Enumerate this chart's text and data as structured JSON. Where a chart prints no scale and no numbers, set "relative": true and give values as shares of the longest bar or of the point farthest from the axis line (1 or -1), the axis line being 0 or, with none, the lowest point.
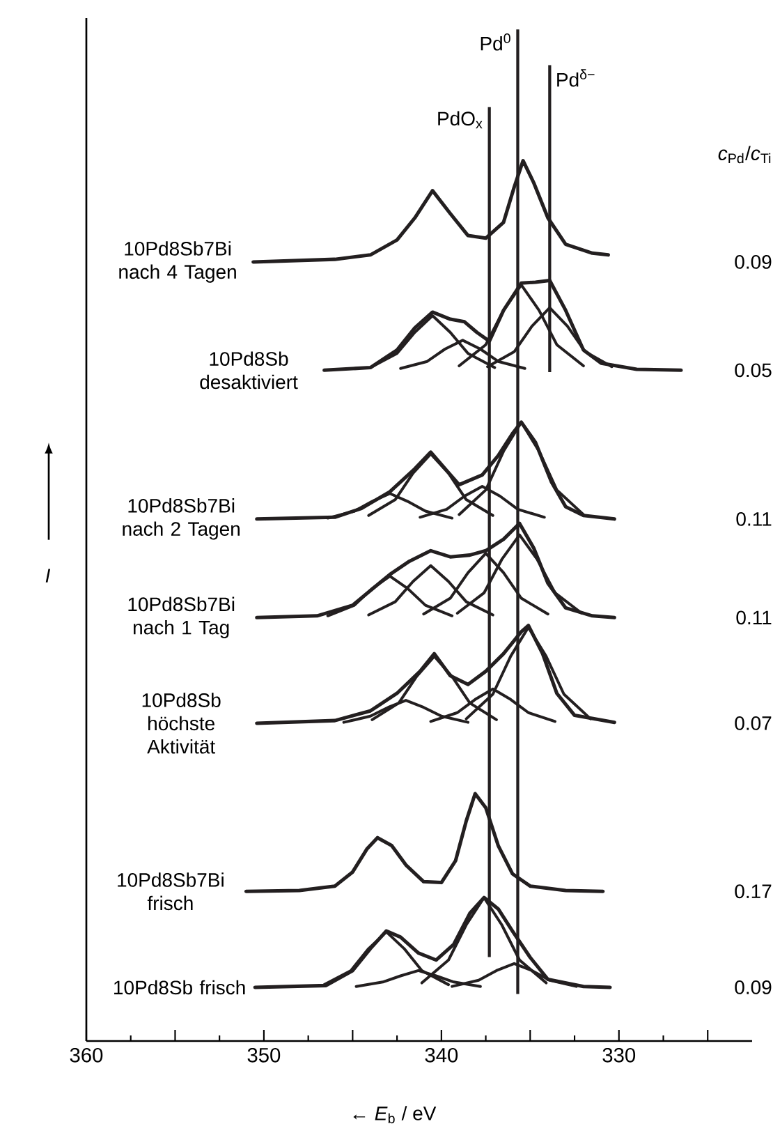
{
  "chart_data": {
    "type": "line",
    "relative": true,
    "xlabel": "← *E*$_{b}$ / eV",
    "ylabel": "*I*",
    "xlim": [
      360,
      322.5
    ],
    "xticks": [
      360,
      {
        "value": 355,
        "label": null
      },
      350,
      {
        "value": 345,
        "label": null
      },
      340,
      {
        "value": 335,
        "label": null
      },
      330,
      {
        "value": 325,
        "label": null
      }
    ],
    "series": [
      {
        "name": "10Pd8Sb7Bi nach 4 Tagen",
        "color": "#231f20",
        "x": [
          350.6,
          346,
          344,
          342.5,
          341.5,
          340.5,
          339.5,
          338.5,
          337.5,
          336.5,
          335.9,
          335.4,
          334.8,
          334,
          333,
          331.5,
          330.6
        ],
        "values": [
          0.885,
          0.888,
          0.893,
          0.91,
          0.935,
          0.966,
          0.94,
          0.915,
          0.912,
          0.93,
          0.97,
          1.0,
          0.975,
          0.935,
          0.905,
          0.895,
          0.893
        ]
      },
      {
        "name": "10Pd8Sb desaktiviert",
        "color": "#231f20",
        "x": [
          346.6,
          344,
          342.5,
          341.5,
          340.5,
          339.5,
          338.7,
          338,
          337.3,
          336.5,
          335.5,
          334.7,
          333.9,
          333,
          332,
          331,
          329,
          326.5
        ],
        "values": [
          0.762,
          0.765,
          0.785,
          0.81,
          0.828,
          0.82,
          0.817,
          0.805,
          0.795,
          0.83,
          0.861,
          0.862,
          0.864,
          0.83,
          0.785,
          0.77,
          0.763,
          0.762
        ]
      },
      {
        "color": "#231f20",
        "x": [
          344,
          342.5,
          341.5,
          340.5,
          339.5,
          338.5,
          337
        ],
        "values": [
          0.765,
          0.781,
          0.805,
          0.824,
          0.805,
          0.781,
          0.765
        ]
      },
      {
        "color": "#231f20",
        "x": [
          342.3,
          340.8,
          339.8,
          338.8,
          337.8,
          336.8,
          335.3
        ],
        "values": [
          0.764,
          0.772,
          0.786,
          0.796,
          0.786,
          0.772,
          0.764
        ]
      },
      {
        "color": "#231f20",
        "x": [
          339,
          337.5,
          336.5,
          335.5,
          334.5,
          333.5,
          332
        ],
        "values": [
          0.767,
          0.791,
          0.83,
          0.859,
          0.83,
          0.791,
          0.767
        ]
      },
      {
        "color": "#231f20",
        "x": [
          337.4,
          335.9,
          334.9,
          333.9,
          332.9,
          331.9,
          330.4
        ],
        "values": [
          0.766,
          0.783,
          0.812,
          0.833,
          0.812,
          0.783,
          0.766
        ]
      },
      {
        "name": "10Pd8Sb7Bi nach 2 Tagen",
        "color": "#231f20",
        "x": [
          350.4,
          346,
          344.5,
          342.9,
          341.5,
          340.6,
          339.7,
          339,
          337.7,
          336.8,
          336,
          335.5,
          334.7,
          333.8,
          333,
          332,
          330.25
        ],
        "values": [
          0.593,
          0.595,
          0.605,
          0.624,
          0.65,
          0.669,
          0.648,
          0.632,
          0.643,
          0.665,
          0.69,
          0.703,
          0.68,
          0.635,
          0.607,
          0.597,
          0.593
        ]
      },
      {
        "color": "#231f20",
        "x": [
          346.4,
          344.9,
          343.9,
          342.9,
          341.9,
          340.9,
          339.4
        ],
        "values": [
          0.594,
          0.602,
          0.613,
          0.622,
          0.613,
          0.602,
          0.594
        ]
      },
      {
        "color": "#231f20",
        "x": [
          344.1,
          342.6,
          341.6,
          340.6,
          339.6,
          338.6,
          337.1
        ],
        "values": [
          0.597,
          0.615,
          0.645,
          0.667,
          0.645,
          0.615,
          0.597
        ]
      },
      {
        "color": "#231f20",
        "x": [
          341.2,
          339.7,
          338.7,
          337.7,
          336.7,
          335.7,
          334.2
        ],
        "values": [
          0.595,
          0.604,
          0.619,
          0.63,
          0.619,
          0.604,
          0.595
        ]
      },
      {
        "color": "#231f20",
        "x": [
          339,
          337.5,
          336.5,
          335.5,
          334.5,
          333.5,
          332
        ],
        "values": [
          0.598,
          0.626,
          0.67,
          0.703,
          0.67,
          0.626,
          0.598
        ]
      },
      {
        "name": "10Pd8Sb7Bi nach 1 Tag",
        "color": "#231f20",
        "x": [
          350.4,
          347,
          345,
          343.5,
          342.9,
          341.8,
          340.6,
          339.5,
          338.4,
          337.5,
          336.5,
          335.6,
          334.8,
          334,
          333,
          331.5,
          330.25
        ],
        "values": [
          0.481,
          0.483,
          0.495,
          0.52,
          0.53,
          0.545,
          0.557,
          0.55,
          0.552,
          0.557,
          0.57,
          0.588,
          0.56,
          0.52,
          0.492,
          0.483,
          0.481
        ]
      },
      {
        "color": "#231f20",
        "x": [
          346.4,
          344.9,
          343.9,
          342.9,
          341.9,
          340.9,
          339.4
        ],
        "values": [
          0.483,
          0.495,
          0.514,
          0.528,
          0.514,
          0.495,
          0.483
        ]
      },
      {
        "color": "#231f20",
        "x": [
          344.1,
          342.6,
          341.6,
          340.6,
          339.6,
          338.6,
          337.1
        ],
        "values": [
          0.484,
          0.499,
          0.522,
          0.54,
          0.522,
          0.499,
          0.484
        ]
      },
      {
        "color": "#231f20",
        "x": [
          341,
          339.5,
          338.5,
          337.5,
          336.5,
          335.5,
          334
        ],
        "values": [
          0.485,
          0.503,
          0.532,
          0.554,
          0.532,
          0.503,
          0.485
        ]
      },
      {
        "color": "#231f20",
        "x": [
          339.1,
          337.6,
          336.6,
          335.6,
          334.6,
          333.6,
          332.1
        ],
        "values": [
          0.486,
          0.509,
          0.547,
          0.575,
          0.547,
          0.509,
          0.486
        ]
      },
      {
        "name": "10Pd8Sb höchste Aktivität",
        "color": "#231f20",
        "x": [
          350.4,
          346,
          344,
          342.5,
          341.2,
          340.4,
          339.5,
          338.5,
          337.5,
          336.5,
          335.5,
          335.1,
          334.3,
          333.5,
          332.5,
          330.25
        ],
        "values": [
          0.361,
          0.364,
          0.375,
          0.395,
          0.42,
          0.44,
          0.415,
          0.405,
          0.42,
          0.44,
          0.465,
          0.472,
          0.44,
          0.395,
          0.37,
          0.362
        ]
      },
      {
        "color": "#231f20",
        "x": [
          345.5,
          344,
          343,
          342,
          341,
          340,
          338.5
        ],
        "values": [
          0.362,
          0.369,
          0.379,
          0.387,
          0.379,
          0.369,
          0.362
        ]
      },
      {
        "color": "#231f20",
        "x": [
          343.9,
          342.4,
          341.4,
          340.4,
          339.4,
          338.4,
          336.9
        ],
        "values": [
          0.365,
          0.384,
          0.414,
          0.437,
          0.414,
          0.384,
          0.365
        ]
      },
      {
        "color": "#231f20",
        "x": [
          340.6,
          339.1,
          338.1,
          337.1,
          336.1,
          335.1,
          333.6
        ],
        "values": [
          0.363,
          0.373,
          0.388,
          0.4,
          0.388,
          0.373,
          0.363
        ]
      },
      {
        "color": "#231f20",
        "x": [
          338.6,
          337.1,
          336.1,
          335.1,
          334.1,
          333.1,
          331.6
        ],
        "values": [
          0.366,
          0.394,
          0.437,
          0.47,
          0.437,
          0.394,
          0.366
        ]
      },
      {
        "name": "10Pd8Sb7Bi frisch",
        "color": "#231f20",
        "x": [
          351,
          348,
          346,
          345,
          344.2,
          343.6,
          342.8,
          342,
          341,
          340,
          339.2,
          338.6,
          338.1,
          337.5,
          336.8,
          336,
          335,
          333,
          330.9
        ],
        "values": [
          0.17,
          0.171,
          0.176,
          0.192,
          0.218,
          0.231,
          0.222,
          0.2,
          0.181,
          0.18,
          0.205,
          0.25,
          0.281,
          0.265,
          0.222,
          0.19,
          0.176,
          0.171,
          0.17
        ]
      },
      {
        "name": "10Pd8Sb frisch",
        "color": "#231f20",
        "x": [
          350.5,
          346.5,
          345,
          344,
          343.1,
          342.3,
          341.3,
          340.3,
          339.3,
          338.4,
          337.6,
          336.8,
          336,
          335,
          334,
          332,
          330.5
        ],
        "values": [
          0.061,
          0.063,
          0.08,
          0.105,
          0.125,
          0.118,
          0.1,
          0.092,
          0.11,
          0.145,
          0.163,
          0.15,
          0.125,
          0.095,
          0.07,
          0.062,
          0.061
        ]
      },
      {
        "color": "#231f20",
        "x": [
          346.6,
          345.1,
          344.1,
          343.1,
          342.1,
          341.1,
          339.6
        ],
        "values": [
          0.064,
          0.08,
          0.105,
          0.124,
          0.105,
          0.08,
          0.064
        ]
      },
      {
        "color": "#231f20",
        "x": [
          344.8,
          343.3,
          342.3,
          341.3,
          340.3,
          339.3,
          337.8
        ],
        "values": [
          0.062,
          0.067,
          0.074,
          0.08,
          0.074,
          0.067,
          0.062
        ]
      },
      {
        "color": "#231f20",
        "x": [
          341.1,
          339.6,
          338.6,
          337.6,
          336.6,
          335.6,
          334.1
        ],
        "values": [
          0.066,
          0.092,
          0.132,
          0.163,
          0.132,
          0.092,
          0.066
        ]
      },
      {
        "color": "#231f20",
        "x": [
          339.4,
          337.9,
          336.9,
          335.9,
          334.9,
          333.9,
          332.4
        ],
        "values": [
          0.062,
          0.069,
          0.08,
          0.088,
          0.08,
          0.069,
          0.062
        ]
      }
    ],
    "ref_lines": [
      {
        "axis": "x",
        "value": 337.3,
        "label": "PdO$_{x}$",
        "color": "#231f20"
      },
      {
        "axis": "x",
        "value": 335.7,
        "label": "Pd$^{0}$",
        "color": "#231f20"
      },
      {
        "axis": "x",
        "value": 333.9,
        "label": "Pd$^{δ−}$",
        "color": "#231f20"
      }
    ],
    "annotations": [
      "*c*$_{Pd}$/*c*$_{Ti}$",
      "0.09",
      "0.05",
      "0.11",
      "0.11",
      "0.07",
      "0.17",
      "0.09"
    ]
  }
}
